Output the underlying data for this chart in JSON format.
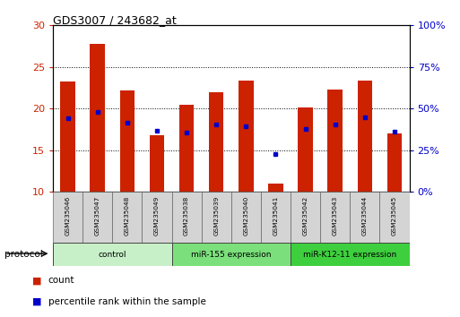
{
  "title": "GDS3007 / 243682_at",
  "samples": [
    "GSM235046",
    "GSM235047",
    "GSM235048",
    "GSM235049",
    "GSM235038",
    "GSM235039",
    "GSM235040",
    "GSM235041",
    "GSM235042",
    "GSM235043",
    "GSM235044",
    "GSM235045"
  ],
  "red_values": [
    23.3,
    27.8,
    22.2,
    16.8,
    20.5,
    22.0,
    23.4,
    11.0,
    20.1,
    22.3,
    23.4,
    17.0
  ],
  "blue_values": [
    18.8,
    19.6,
    18.3,
    17.3,
    17.1,
    18.1,
    17.9,
    14.5,
    17.5,
    18.1,
    19.0,
    17.2
  ],
  "red_base": 10,
  "ylim_left": [
    10,
    30
  ],
  "ylim_right": [
    0,
    100
  ],
  "yticks_left": [
    10,
    15,
    20,
    25,
    30
  ],
  "yticks_right": [
    0,
    25,
    50,
    75,
    100
  ],
  "ytick_labels_left": [
    "10",
    "15",
    "20",
    "25",
    "30"
  ],
  "ytick_labels_right": [
    "0%",
    "25%",
    "50%",
    "75%",
    "100%"
  ],
  "groups": [
    {
      "label": "control",
      "start": 0,
      "end": 4,
      "color": "#c8f0c8"
    },
    {
      "label": "miR-155 expression",
      "start": 4,
      "end": 8,
      "color": "#7be07b"
    },
    {
      "label": "miR-K12-11 expression",
      "start": 8,
      "end": 12,
      "color": "#3ecf3e"
    }
  ],
  "red_color": "#cc2200",
  "blue_color": "#0000cc",
  "bg_color": "#ffffff",
  "bar_width": 0.5,
  "protocol_label": "protocol",
  "legend_count": "count",
  "legend_pct": "percentile rank within the sample"
}
